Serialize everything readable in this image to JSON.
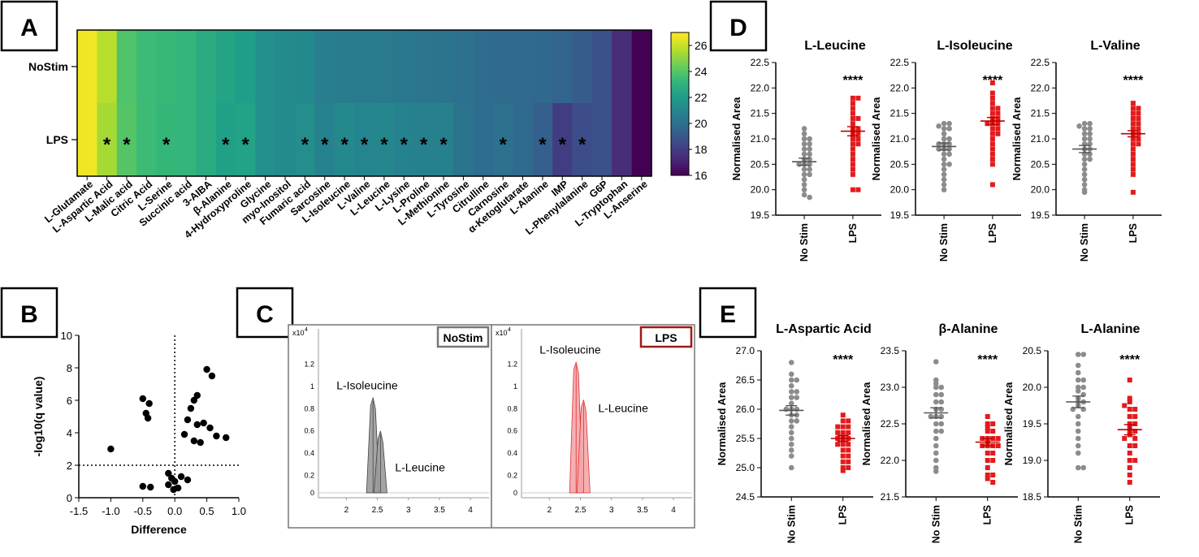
{
  "panels": {
    "A": "A",
    "B": "B",
    "C": "C",
    "D": "D",
    "E": "E"
  },
  "colors": {
    "nostim": "#8c8c8c",
    "lps": "#e41a1c",
    "lps_box": "#a01818",
    "nostim_box": "#777777",
    "viridis": [
      "#440154",
      "#482878",
      "#3e4989",
      "#31688e",
      "#26828e",
      "#1f9e89",
      "#35b779",
      "#6ece58",
      "#b5de2b",
      "#fde725"
    ]
  },
  "chart_data": [
    {
      "type": "heatmap",
      "panel": "A",
      "rows": [
        "NoStim",
        "LPS"
      ],
      "columns": [
        "L-Glutamate",
        "L-Aspartic Acid",
        "L-Malic acid",
        "Citric Acid",
        "L-Serine",
        "Succinic acid",
        "3-AIBA",
        "β-Alanine",
        "4-Hydroxyproline",
        "Glycine",
        "myo-Inositol",
        "Fumaric acid",
        "Sarcosine",
        "L-Isoleucine",
        "L-Valine",
        "L-Leucine",
        "L-Lysine",
        "L-Proline",
        "L-Methionine",
        "L-Tyrosine",
        "Citrulline",
        "Carnosine",
        "α-Ketoglutarate",
        "L-Alanine",
        "IMP",
        "L-Phenylalanine",
        "G6P",
        "L-Tryptophan",
        "L-Anserine"
      ],
      "values": [
        [
          26.8,
          25.8,
          23.9,
          23.5,
          23.4,
          23.2,
          22.8,
          22.4,
          22.1,
          21.5,
          21.3,
          21.2,
          20.7,
          20.6,
          20.5,
          20.5,
          20.4,
          20.3,
          20.2,
          20.1,
          19.9,
          19.8,
          19.8,
          19.7,
          19.5,
          19.2,
          18.8,
          17.4,
          16.0
        ],
        [
          26.8,
          25.5,
          24.0,
          23.5,
          23.3,
          23.2,
          22.8,
          22.2,
          22.3,
          21.5,
          21.3,
          21.4,
          20.9,
          21.2,
          21.0,
          21.1,
          20.9,
          20.8,
          20.8,
          20.2,
          19.9,
          20.1,
          19.8,
          19.3,
          18.0,
          18.6,
          18.8,
          17.4,
          16.0
        ]
      ],
      "significant": {
        "row": "LPS",
        "columns": [
          "L-Aspartic Acid",
          "L-Malic acid",
          "L-Serine",
          "β-Alanine",
          "4-Hydroxyproline",
          "Fumaric acid",
          "Sarcosine",
          "L-Isoleucine",
          "L-Valine",
          "L-Leucine",
          "L-Lysine",
          "L-Proline",
          "L-Methionine",
          "Carnosine",
          "L-Alanine",
          "IMP",
          "L-Phenylalanine"
        ],
        "marker": "*"
      },
      "colorbar": {
        "min": 16,
        "max": 27,
        "ticks": [
          "16",
          "18",
          "20",
          "22",
          "24",
          "26"
        ]
      }
    },
    {
      "type": "scatter",
      "panel": "B",
      "xlabel": "Difference",
      "ylabel": "-log10(q value)",
      "xlim": [
        -1.5,
        1.0
      ],
      "ylim": [
        0,
        10
      ],
      "xticks": [
        "-1.5",
        "-1.0",
        "-0.5",
        "0.0",
        "0.5",
        "1.0"
      ],
      "yticks": [
        "0",
        "2",
        "4",
        "6",
        "8",
        "10"
      ],
      "threshold_y": 2,
      "vline_x": 0,
      "points": [
        {
          "x": -1.0,
          "y": 3.0
        },
        {
          "x": -0.5,
          "y": 6.1
        },
        {
          "x": -0.4,
          "y": 5.8
        },
        {
          "x": -0.45,
          "y": 5.2
        },
        {
          "x": -0.42,
          "y": 4.9
        },
        {
          "x": -0.5,
          "y": 0.7
        },
        {
          "x": -0.38,
          "y": 0.65
        },
        {
          "x": -0.1,
          "y": 1.5
        },
        {
          "x": -0.05,
          "y": 1.2
        },
        {
          "x": -0.1,
          "y": 0.8
        },
        {
          "x": -0.02,
          "y": 0.5
        },
        {
          "x": 0.05,
          "y": 0.6
        },
        {
          "x": 0.1,
          "y": 1.3
        },
        {
          "x": 0.2,
          "y": 1.1
        },
        {
          "x": 0.0,
          "y": 1.0
        },
        {
          "x": 0.5,
          "y": 7.9
        },
        {
          "x": 0.58,
          "y": 7.5
        },
        {
          "x": 0.35,
          "y": 6.3
        },
        {
          "x": 0.3,
          "y": 6.0
        },
        {
          "x": 0.25,
          "y": 5.5
        },
        {
          "x": 0.2,
          "y": 4.8
        },
        {
          "x": 0.35,
          "y": 4.5
        },
        {
          "x": 0.45,
          "y": 4.6
        },
        {
          "x": 0.55,
          "y": 4.3
        },
        {
          "x": 0.15,
          "y": 3.9
        },
        {
          "x": 0.3,
          "y": 3.5
        },
        {
          "x": 0.4,
          "y": 3.4
        },
        {
          "x": 0.65,
          "y": 3.8
        },
        {
          "x": 0.8,
          "y": 3.7
        }
      ]
    },
    {
      "type": "area",
      "panel": "C",
      "subplots": [
        {
          "name": "NoStim",
          "exponent_label": "x10",
          "exponent": "4",
          "yticks": [
            "0",
            "0.2",
            "0.4",
            "0.6",
            "0.8",
            "1",
            "1.2"
          ],
          "xticks": [
            "2",
            "2.5",
            "3",
            "3.5",
            "4"
          ],
          "xlim": [
            1.55,
            4.3
          ],
          "ylim": [
            0,
            1.4
          ],
          "peaks": [
            {
              "label": "L-Isoleucine",
              "x": 2.43,
              "height": 0.9
            },
            {
              "label": "L-Leucine",
              "x": 2.55,
              "height": 0.6
            }
          ]
        },
        {
          "name": "LPS",
          "exponent_label": "x10",
          "exponent": "4",
          "yticks": [
            "0",
            "0.2",
            "0.4",
            "0.6",
            "0.8",
            "1",
            "1.2"
          ],
          "xticks": [
            "2",
            "2.5",
            "3",
            "3.5",
            "4"
          ],
          "xlim": [
            1.55,
            4.3
          ],
          "ylim": [
            0,
            1.4
          ],
          "peaks": [
            {
              "label": "L-Isoleucine",
              "x": 2.43,
              "height": 1.22
            },
            {
              "label": "L-Leucine",
              "x": 2.55,
              "height": 0.88
            }
          ]
        }
      ]
    },
    {
      "type": "scatter",
      "panel": "D",
      "subplots": [
        {
          "title": "L-Leucine",
          "ylabel": "Normalised Area",
          "ylim": [
            19.5,
            22.5
          ],
          "yticks": [
            "19.5",
            "20.0",
            "20.5",
            "21.0",
            "21.5",
            "22.0",
            "22.5"
          ],
          "groups": [
            "No Stim",
            "LPS"
          ],
          "significance": "****",
          "nostim": [
            21.2,
            21.1,
            21.0,
            21.0,
            20.9,
            20.9,
            20.8,
            20.8,
            20.7,
            20.7,
            20.6,
            20.6,
            20.5,
            20.5,
            20.5,
            20.4,
            20.4,
            20.3,
            20.3,
            20.2,
            20.1,
            20.0,
            19.9,
            19.85
          ],
          "nostim_mean": 20.55,
          "nostim_sem": 0.07,
          "lps": [
            21.8,
            21.8,
            21.7,
            21.6,
            21.5,
            21.4,
            21.4,
            21.3,
            21.2,
            21.2,
            21.1,
            21.1,
            21.0,
            21.0,
            20.9,
            20.9,
            20.8,
            20.7,
            20.6,
            20.5,
            20.4,
            20.3,
            20.0,
            20.0
          ],
          "lps_mean": 21.15,
          "lps_sem": 0.09
        },
        {
          "title": "L-Isoleucine",
          "ylabel": "Normalised Area",
          "ylim": [
            19.5,
            22.5
          ],
          "yticks": [
            "19.5",
            "20.0",
            "20.5",
            "21.0",
            "21.5",
            "22.0",
            "22.5"
          ],
          "groups": [
            "No Stim",
            "LPS"
          ],
          "significance": "****",
          "nostim": [
            21.3,
            21.3,
            21.2,
            21.2,
            21.1,
            21.0,
            21.0,
            20.9,
            20.9,
            20.9,
            20.8,
            20.8,
            20.8,
            20.7,
            20.7,
            20.6,
            20.5,
            20.5,
            20.4,
            20.3,
            20.2,
            20.1,
            20.0,
            21.25
          ],
          "nostim_mean": 20.85,
          "nostim_sem": 0.07,
          "lps": [
            22.1,
            21.9,
            21.8,
            21.7,
            21.6,
            21.5,
            21.5,
            21.4,
            21.4,
            21.3,
            21.3,
            21.3,
            21.2,
            21.2,
            21.1,
            21.1,
            21.0,
            20.9,
            20.8,
            20.7,
            20.6,
            20.5,
            20.1,
            21.6
          ],
          "lps_mean": 21.35,
          "lps_sem": 0.07
        },
        {
          "title": "L-Valine",
          "ylabel": "Normalised Area",
          "ylim": [
            19.5,
            22.5
          ],
          "yticks": [
            "19.5",
            "20.0",
            "20.5",
            "21.0",
            "21.5",
            "22.0",
            "22.5"
          ],
          "groups": [
            "No Stim",
            "LPS"
          ],
          "significance": "****",
          "nostim": [
            21.3,
            21.3,
            21.2,
            21.2,
            21.1,
            21.1,
            21.0,
            21.0,
            20.9,
            20.9,
            20.8,
            20.8,
            20.7,
            20.7,
            20.6,
            20.6,
            20.5,
            20.4,
            20.3,
            20.2,
            20.1,
            20.0,
            19.95,
            21.25
          ],
          "nostim_mean": 20.8,
          "nostim_sem": 0.07,
          "lps": [
            21.7,
            21.6,
            21.5,
            21.5,
            21.4,
            21.4,
            21.3,
            21.3,
            21.2,
            21.2,
            21.1,
            21.1,
            21.0,
            21.0,
            20.9,
            20.9,
            20.8,
            20.7,
            20.6,
            20.5,
            20.4,
            20.3,
            19.95,
            21.6
          ],
          "lps_mean": 21.1,
          "lps_sem": 0.06
        }
      ]
    },
    {
      "type": "scatter",
      "panel": "E",
      "subplots": [
        {
          "title": "L-Aspartic Acid",
          "ylabel": "Normalised Area",
          "ylim": [
            24.5,
            27.0
          ],
          "yticks": [
            "24.5",
            "25.0",
            "25.5",
            "26.0",
            "26.5",
            "27.0"
          ],
          "groups": [
            "No Stim",
            "LPS"
          ],
          "significance": "****",
          "nostim": [
            26.8,
            26.6,
            26.5,
            26.5,
            26.4,
            26.3,
            26.2,
            26.2,
            26.1,
            26.0,
            26.0,
            26.0,
            25.9,
            25.9,
            25.8,
            25.8,
            25.7,
            25.6,
            25.5,
            25.4,
            25.3,
            25.2,
            25.0,
            26.3
          ],
          "nostim_mean": 25.98,
          "nostim_sem": 0.08,
          "lps": [
            25.9,
            25.8,
            25.8,
            25.7,
            25.7,
            25.6,
            25.6,
            25.6,
            25.5,
            25.5,
            25.5,
            25.4,
            25.4,
            25.4,
            25.3,
            25.3,
            25.2,
            25.2,
            25.1,
            25.1,
            25.0,
            24.95,
            25.0,
            25.7
          ],
          "lps_mean": 25.5,
          "lps_sem": 0.05
        },
        {
          "title": "β-Alanine",
          "ylabel": "Normalised Area",
          "ylim": [
            21.5,
            23.5
          ],
          "yticks": [
            "21.5",
            "22.0",
            "22.5",
            "23.0",
            "23.5"
          ],
          "groups": [
            "No Stim",
            "LPS"
          ],
          "significance": "****",
          "nostim": [
            23.35,
            23.1,
            23.0,
            23.0,
            22.9,
            22.9,
            22.8,
            22.8,
            22.7,
            22.7,
            22.6,
            22.6,
            22.6,
            22.5,
            22.5,
            22.4,
            22.4,
            22.3,
            22.2,
            22.1,
            22.0,
            21.9,
            21.85,
            23.05
          ],
          "nostim_mean": 22.65,
          "nostim_sem": 0.07,
          "lps": [
            22.6,
            22.5,
            22.5,
            22.4,
            22.4,
            22.3,
            22.3,
            22.3,
            22.3,
            22.2,
            22.2,
            22.2,
            22.2,
            22.1,
            22.1,
            22.0,
            22.0,
            21.9,
            21.8,
            21.8,
            21.75,
            21.7,
            22.25,
            22.45
          ],
          "lps_mean": 22.25,
          "lps_sem": 0.05
        },
        {
          "title": "L-Alanine",
          "ylabel": "Normalised Area",
          "ylim": [
            18.5,
            20.5
          ],
          "yticks": [
            "18.5",
            "19.0",
            "19.5",
            "20.0",
            "20.5"
          ],
          "groups": [
            "No Stim",
            "LPS"
          ],
          "significance": "****",
          "nostim": [
            20.45,
            20.45,
            20.3,
            20.2,
            20.1,
            20.1,
            20.0,
            20.0,
            19.95,
            19.9,
            19.85,
            19.8,
            19.8,
            19.75,
            19.7,
            19.7,
            19.6,
            19.5,
            19.4,
            19.3,
            19.2,
            19.1,
            18.9,
            18.9
          ],
          "nostim_mean": 19.8,
          "nostim_sem": 0.08,
          "lps": [
            20.1,
            19.85,
            19.8,
            19.7,
            19.7,
            19.6,
            19.6,
            19.5,
            19.5,
            19.45,
            19.4,
            19.4,
            19.35,
            19.3,
            19.3,
            19.2,
            19.2,
            19.1,
            19.0,
            19.0,
            18.9,
            18.8,
            18.7,
            19.75
          ],
          "lps_mean": 19.42,
          "lps_sem": 0.07
        }
      ]
    }
  ]
}
